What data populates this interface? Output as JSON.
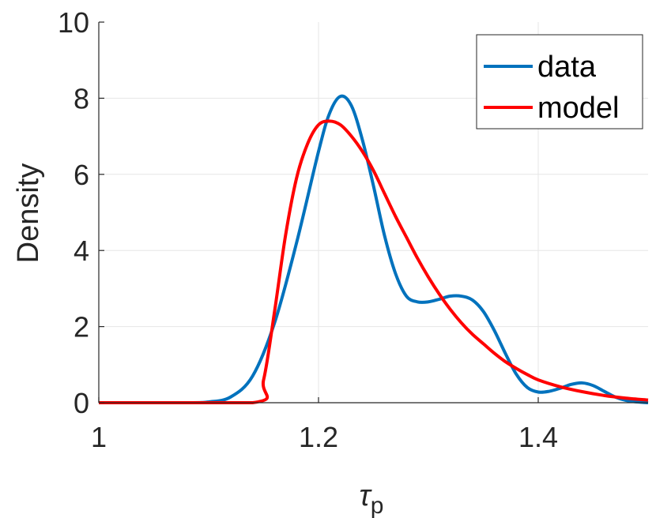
{
  "chart_data": {
    "type": "line",
    "xlabel": "τ",
    "xlabel_sub": "p",
    "ylabel": "Density",
    "xlim": [
      1,
      1.5
    ],
    "ylim": [
      0,
      10
    ],
    "xticks": [
      1,
      1.2,
      1.4
    ],
    "xtick_labels": [
      "1",
      "1.2",
      "1.4"
    ],
    "yticks": [
      0,
      2,
      4,
      6,
      8,
      10
    ],
    "ytick_labels": [
      "0",
      "2",
      "4",
      "6",
      "8",
      "10"
    ],
    "grid": true,
    "legend_position": "top-right",
    "series": [
      {
        "name": "data",
        "color": "#0072BD",
        "x": [
          1.0,
          1.08,
          1.1,
          1.12,
          1.14,
          1.16,
          1.18,
          1.2,
          1.21,
          1.22,
          1.23,
          1.24,
          1.25,
          1.26,
          1.27,
          1.28,
          1.29,
          1.3,
          1.31,
          1.32,
          1.33,
          1.34,
          1.35,
          1.36,
          1.37,
          1.38,
          1.39,
          1.4,
          1.41,
          1.42,
          1.43,
          1.44,
          1.45,
          1.46,
          1.47,
          1.48,
          1.49,
          1.5
        ],
        "y": [
          0.0,
          0.0,
          0.02,
          0.15,
          0.7,
          2.1,
          4.2,
          6.6,
          7.6,
          8.05,
          7.8,
          6.9,
          5.7,
          4.4,
          3.4,
          2.8,
          2.65,
          2.65,
          2.72,
          2.8,
          2.8,
          2.7,
          2.4,
          1.9,
          1.3,
          0.75,
          0.4,
          0.28,
          0.3,
          0.38,
          0.48,
          0.52,
          0.45,
          0.3,
          0.15,
          0.06,
          0.02,
          0.0
        ]
      },
      {
        "name": "model",
        "color": "#FF0000",
        "x": [
          1.0,
          1.14,
          1.15,
          1.16,
          1.17,
          1.18,
          1.19,
          1.2,
          1.21,
          1.22,
          1.23,
          1.24,
          1.25,
          1.26,
          1.27,
          1.28,
          1.29,
          1.3,
          1.31,
          1.32,
          1.33,
          1.34,
          1.35,
          1.36,
          1.37,
          1.38,
          1.39,
          1.4,
          1.42,
          1.44,
          1.46,
          1.48,
          1.5
        ],
        "y": [
          0.0,
          0.0,
          0.6,
          2.4,
          4.4,
          5.9,
          6.8,
          7.3,
          7.4,
          7.3,
          7.0,
          6.6,
          6.1,
          5.5,
          4.9,
          4.35,
          3.8,
          3.3,
          2.85,
          2.45,
          2.1,
          1.8,
          1.55,
          1.3,
          1.08,
          0.9,
          0.74,
          0.6,
          0.42,
          0.29,
          0.19,
          0.12,
          0.07
        ]
      }
    ]
  }
}
